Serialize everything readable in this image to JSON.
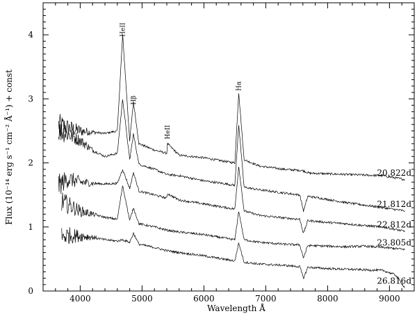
{
  "chart_data": {
    "type": "line",
    "title": "",
    "xlabel": "Wavelength Å",
    "ylabel": "Flux (10⁻¹⁴ erg s⁻¹ cm⁻² Å⁻¹) + const",
    "xlim": [
      3400,
      9400
    ],
    "ylim": [
      0,
      4.5
    ],
    "xticks": [
      4000,
      5000,
      6000,
      7000,
      8000,
      9000
    ],
    "yticks": [
      0,
      1,
      2,
      3,
      4
    ],
    "grid": false,
    "legend": "none",
    "annotations": [
      {
        "text": "HeII",
        "x": 4686,
        "y": 4.08
      },
      {
        "text": "Hβ",
        "x": 4861,
        "y": 2.98
      },
      {
        "text": "HeII",
        "x": 5411,
        "y": 2.48
      },
      {
        "text": "Hα",
        "x": 6563,
        "y": 3.2
      }
    ],
    "series": [
      {
        "name": "20.822d",
        "x": [
          3650,
          3800,
          4000,
          4200,
          4400,
          4600,
          4686,
          4800,
          4861,
          4950,
          5200,
          5400,
          5411,
          5600,
          6000,
          6300,
          6500,
          6563,
          6650,
          6900,
          7300,
          7600,
          7700,
          8000,
          8300,
          8600,
          8900,
          9250
        ],
        "y": [
          2.6,
          2.55,
          2.5,
          2.48,
          2.46,
          2.5,
          4.0,
          2.35,
          2.95,
          2.3,
          2.2,
          2.15,
          2.3,
          2.12,
          2.08,
          2.03,
          2.0,
          3.1,
          2.05,
          1.95,
          1.9,
          1.88,
          1.84,
          1.83,
          1.82,
          1.81,
          1.8,
          1.74
        ]
      },
      {
        "name": "21.812d",
        "x": [
          3650,
          3800,
          4000,
          4200,
          4400,
          4600,
          4686,
          4800,
          4861,
          4950,
          5200,
          5400,
          5600,
          6000,
          6300,
          6500,
          6563,
          6650,
          6900,
          7300,
          7550,
          7610,
          7680,
          8000,
          8300,
          8600,
          8900,
          9250
        ],
        "y": [
          2.5,
          2.45,
          2.35,
          2.2,
          2.1,
          2.15,
          3.0,
          2.05,
          2.45,
          1.98,
          1.9,
          1.82,
          1.8,
          1.72,
          1.68,
          1.65,
          2.6,
          1.62,
          1.58,
          1.53,
          1.5,
          1.25,
          1.48,
          1.43,
          1.38,
          1.34,
          1.3,
          1.25
        ]
      },
      {
        "name": "22.812d",
        "x": [
          3650,
          3800,
          4000,
          4200,
          4400,
          4600,
          4686,
          4800,
          4861,
          4950,
          5200,
          5400,
          5411,
          5600,
          6000,
          6300,
          6500,
          6563,
          6650,
          6900,
          7300,
          7550,
          7610,
          7680,
          8000,
          8300,
          8600,
          8900,
          9250
        ],
        "y": [
          1.65,
          1.75,
          1.7,
          1.68,
          1.67,
          1.68,
          1.9,
          1.6,
          1.85,
          1.56,
          1.5,
          1.45,
          1.52,
          1.42,
          1.36,
          1.31,
          1.28,
          1.95,
          1.25,
          1.18,
          1.14,
          1.12,
          0.9,
          1.1,
          1.07,
          1.05,
          1.02,
          1.0,
          0.93
        ]
      },
      {
        "name": "23.805d",
        "x": [
          3700,
          3800,
          4000,
          4200,
          4400,
          4600,
          4686,
          4800,
          4861,
          4950,
          5200,
          5400,
          5600,
          6000,
          6300,
          6500,
          6563,
          6650,
          6900,
          7300,
          7550,
          7610,
          7680,
          8000,
          8300,
          8600,
          8900,
          9250
        ],
        "y": [
          1.4,
          1.35,
          1.25,
          1.2,
          1.15,
          1.12,
          1.65,
          1.1,
          1.3,
          1.05,
          1.0,
          0.95,
          0.92,
          0.88,
          0.83,
          0.8,
          1.25,
          0.8,
          0.76,
          0.73,
          0.72,
          0.52,
          0.71,
          0.7,
          0.69,
          0.7,
          0.68,
          0.65
        ]
      },
      {
        "name": "26.816d",
        "x": [
          3700,
          3800,
          4000,
          4200,
          4400,
          4600,
          4686,
          4800,
          4861,
          4950,
          5200,
          5400,
          5600,
          6000,
          6300,
          6500,
          6563,
          6650,
          6900,
          7300,
          7550,
          7610,
          7680,
          8000,
          8300,
          8600,
          8900,
          9100,
          9250
        ],
        "y": [
          0.85,
          0.87,
          0.86,
          0.84,
          0.8,
          0.78,
          0.8,
          0.76,
          0.9,
          0.73,
          0.68,
          0.63,
          0.6,
          0.55,
          0.5,
          0.47,
          0.75,
          0.45,
          0.42,
          0.4,
          0.38,
          0.2,
          0.37,
          0.35,
          0.34,
          0.33,
          0.32,
          0.25,
          0.05
        ]
      }
    ]
  }
}
